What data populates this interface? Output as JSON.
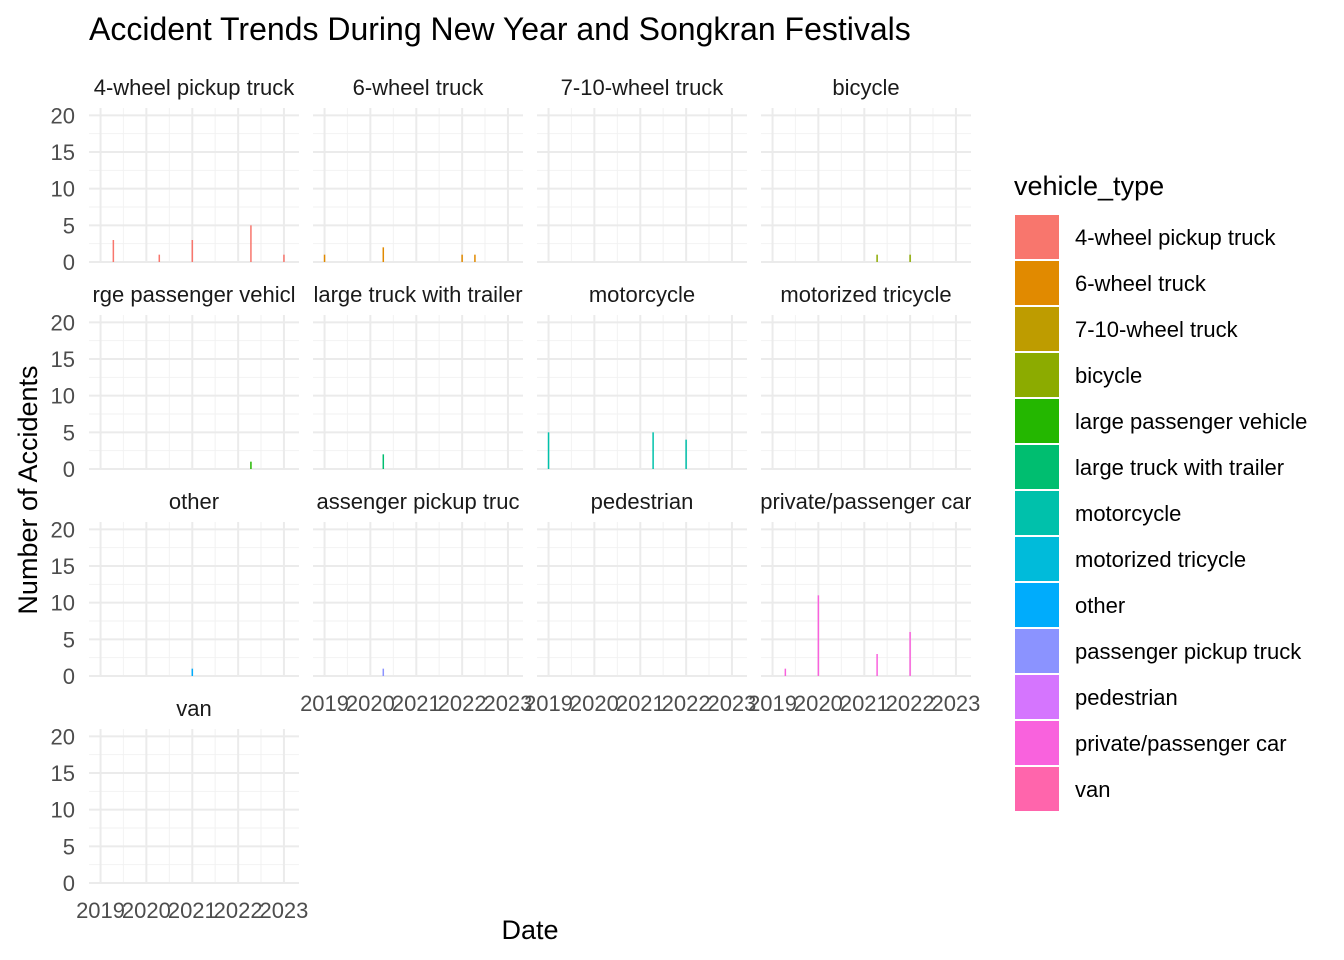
{
  "chart_data": {
    "type": "bar",
    "title": "Accident Trends During New Year and Songkran Festivals",
    "xlabel": "Date",
    "ylabel": "Number of Accidents",
    "ylim": [
      0,
      21
    ],
    "yticks": [
      0,
      5,
      10,
      15,
      20
    ],
    "xlim": [
      "2018-10-01",
      "2023-05-01"
    ],
    "xticks": [
      {
        "date": "2019-01-01",
        "label": "2019"
      },
      {
        "date": "2020-01-01",
        "label": "2020"
      },
      {
        "date": "2021-01-01",
        "label": "2021"
      },
      {
        "date": "2022-01-01",
        "label": "2022"
      },
      {
        "date": "2023-01-01",
        "label": "2023"
      }
    ],
    "grid": true,
    "legend": {
      "title": "vehicle_type",
      "position": "right"
    },
    "series": [
      {
        "name": "4-wheel pickup truck",
        "color": "#F8766D",
        "strip": "4-wheel pickup truck",
        "points": [
          {
            "x": "2019-04-13",
            "y": 3
          },
          {
            "x": "2020-04-13",
            "y": 1
          },
          {
            "x": "2021-01-01",
            "y": 3
          },
          {
            "x": "2022-04-13",
            "y": 5
          },
          {
            "x": "2023-01-01",
            "y": 1
          }
        ]
      },
      {
        "name": "6-wheel truck",
        "color": "#E18A00",
        "strip": "6-wheel truck",
        "points": [
          {
            "x": "2019-01-01",
            "y": 1
          },
          {
            "x": "2020-04-13",
            "y": 2
          },
          {
            "x": "2022-01-01",
            "y": 1
          },
          {
            "x": "2022-04-13",
            "y": 1
          }
        ]
      },
      {
        "name": "7-10-wheel truck",
        "color": "#BE9C00",
        "strip": "7-10-wheel truck",
        "points": []
      },
      {
        "name": "bicycle",
        "color": "#8CAB00",
        "strip": "bicycle",
        "points": [
          {
            "x": "2021-04-13",
            "y": 1
          },
          {
            "x": "2022-01-01",
            "y": 1
          }
        ]
      },
      {
        "name": "large passenger vehicle",
        "color": "#24B700",
        "strip": "rge passenger vehicl",
        "points": [
          {
            "x": "2022-04-13",
            "y": 1
          }
        ]
      },
      {
        "name": "large truck with trailer",
        "color": "#00BE70",
        "strip": "large truck with trailer",
        "points": [
          {
            "x": "2020-04-13",
            "y": 2
          }
        ]
      },
      {
        "name": "motorcycle",
        "color": "#00C1AB",
        "strip": "motorcycle",
        "points": [
          {
            "x": "2019-01-01",
            "y": 5
          },
          {
            "x": "2021-04-13",
            "y": 5
          },
          {
            "x": "2022-01-01",
            "y": 4
          }
        ]
      },
      {
        "name": "motorized tricycle",
        "color": "#00BBDA",
        "strip": "motorized tricycle",
        "points": []
      },
      {
        "name": "other",
        "color": "#00ACFC",
        "strip": "other",
        "points": [
          {
            "x": "2021-01-01",
            "y": 1
          }
        ]
      },
      {
        "name": "passenger pickup truck",
        "color": "#8B93FF",
        "strip": "assenger pickup truc",
        "points": [
          {
            "x": "2020-04-13",
            "y": 1
          }
        ]
      },
      {
        "name": "pedestrian",
        "color": "#D575FE",
        "strip": "pedestrian",
        "points": []
      },
      {
        "name": "private/passenger car",
        "color": "#F962DD",
        "strip": "private/passenger car",
        "points": [
          {
            "x": "2019-04-13",
            "y": 1
          },
          {
            "x": "2020-01-01",
            "y": 11
          },
          {
            "x": "2021-04-13",
            "y": 3
          },
          {
            "x": "2022-01-01",
            "y": 6
          }
        ]
      },
      {
        "name": "van",
        "color": "#FF65AC",
        "strip": "van",
        "points": []
      }
    ]
  }
}
